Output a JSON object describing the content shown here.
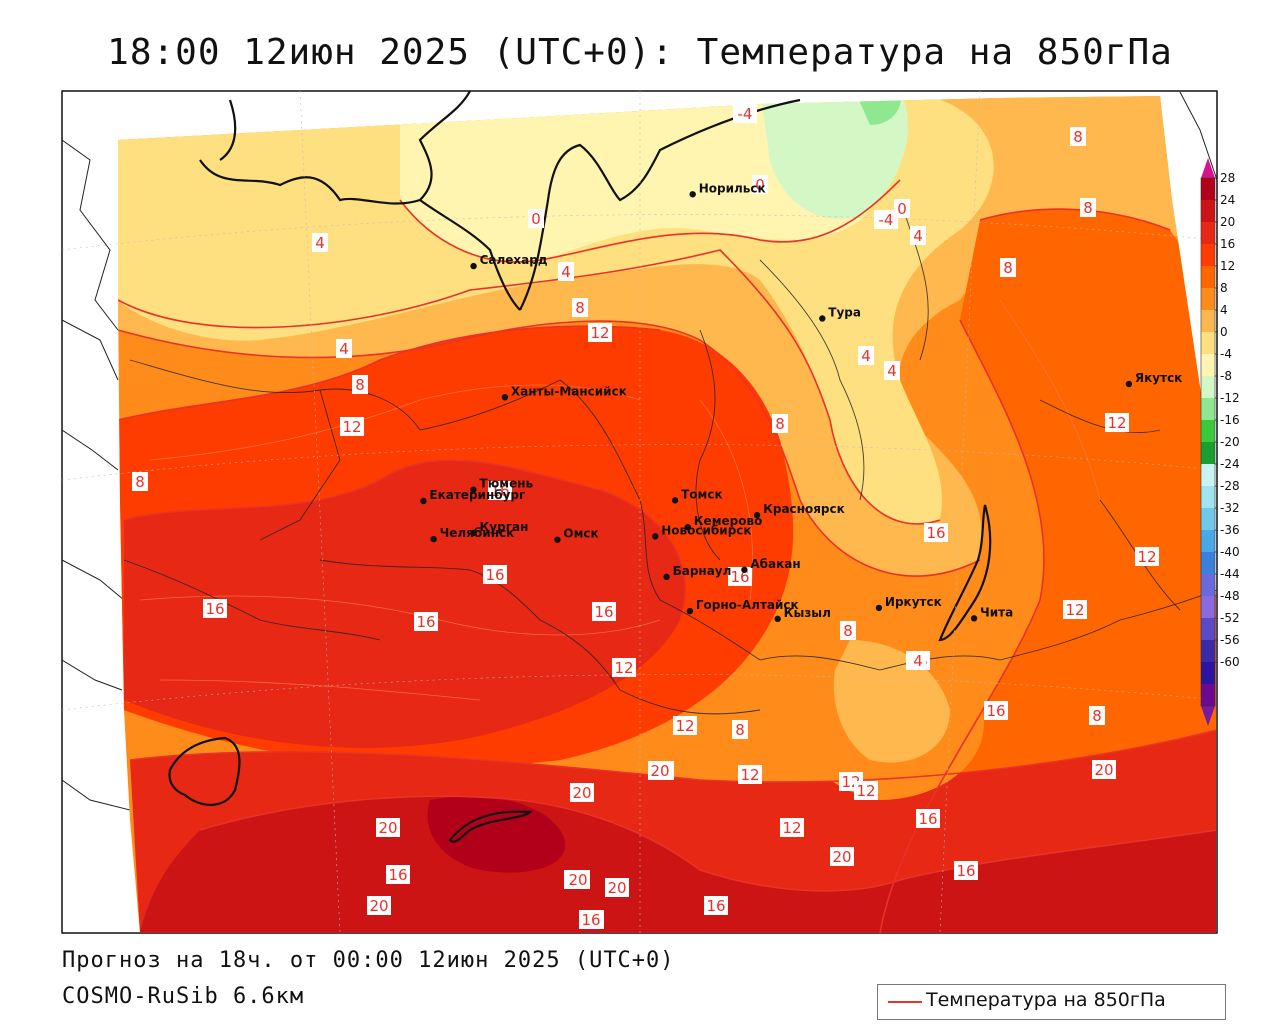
{
  "title": "18:00 12июн 2025 (UTC+0): Температура на 850гПа",
  "forecast_line": "Прогноз на 18ч. от 00:00 12июн 2025 (UTC+0)",
  "model_line": "COSMO-RuSib 6.6км",
  "legend_label": "Температура на 850гПа",
  "colorbar": {
    "ticks": [
      28,
      24,
      20,
      16,
      12,
      8,
      4,
      0,
      -4,
      -8,
      -12,
      -16,
      -20,
      -24,
      -28,
      -32,
      -36,
      -40,
      -44,
      -48,
      -52,
      -56,
      -60
    ],
    "colors": [
      "#b3001a",
      "#cc1414",
      "#e62814",
      "#ff3c00",
      "#ff6600",
      "#ff8c1a",
      "#ffb84d",
      "#ffe080",
      "#fff4b0",
      "#d4f7c6",
      "#8fe88f",
      "#3cc83c",
      "#1a9e2e",
      "#c8f4f4",
      "#a0e4f0",
      "#70c8ec",
      "#4aa8e8",
      "#3a80dc",
      "#6a6adc",
      "#8a6ae0",
      "#5a4ac8",
      "#3a2aa8",
      "#2a14a0",
      "#6a0a90"
    ],
    "top_arrow_color": "#d6138c",
    "bottom_arrow_color": "#7a1aa0"
  },
  "cities": [
    {
      "name": "Норильск",
      "lon_deg": 88.2,
      "lat_deg": 69.3
    },
    {
      "name": "Якутск",
      "lon_deg": 129.7,
      "lat_deg": 62.0
    },
    {
      "name": "Салехард",
      "lon_deg": 66.6,
      "lat_deg": 66.5
    },
    {
      "name": "Тура",
      "lon_deg": 100.2,
      "lat_deg": 64.3
    },
    {
      "name": "Ханты-Мансийск",
      "lon_deg": 69.0,
      "lat_deg": 61.0
    },
    {
      "name": "Екатеринбург",
      "lon_deg": 60.6,
      "lat_deg": 56.8
    },
    {
      "name": "Тюмень",
      "lon_deg": 65.5,
      "lat_deg": 57.2
    },
    {
      "name": "Челябинск",
      "lon_deg": 61.4,
      "lat_deg": 55.2
    },
    {
      "name": "Курган",
      "lon_deg": 65.3,
      "lat_deg": 55.4
    },
    {
      "name": "Омск",
      "lon_deg": 73.4,
      "lat_deg": 55.0
    },
    {
      "name": "Новосибирск",
      "lon_deg": 82.9,
      "lat_deg": 55.0
    },
    {
      "name": "Томск",
      "lon_deg": 85.0,
      "lat_deg": 56.5
    },
    {
      "name": "Кемерово",
      "lon_deg": 86.1,
      "lat_deg": 55.4
    },
    {
      "name": "Красноярск",
      "lon_deg": 92.9,
      "lat_deg": 56.0
    },
    {
      "name": "Барнаул",
      "lon_deg": 83.8,
      "lat_deg": 53.3
    },
    {
      "name": "Абакан",
      "lon_deg": 91.4,
      "lat_deg": 53.7
    },
    {
      "name": "Горно-Алтайск",
      "lon_deg": 85.9,
      "lat_deg": 51.9
    },
    {
      "name": "Кызыл",
      "lon_deg": 94.4,
      "lat_deg": 51.7
    },
    {
      "name": "Иркутск",
      "lon_deg": 104.3,
      "lat_deg": 52.3
    },
    {
      "name": "Чита",
      "lon_deg": 113.5,
      "lat_deg": 52.0
    }
  ],
  "contour_labels": [
    "-4",
    "8",
    "0",
    "-4",
    "0",
    "8",
    "0",
    "4",
    "4",
    "4",
    "8",
    "8",
    "12",
    "4",
    "4",
    "4",
    "8",
    "8",
    "12",
    "12",
    "8",
    "16",
    "16",
    "12",
    "16",
    "16",
    "16",
    "16",
    "12",
    "16",
    "8",
    "12",
    "16",
    "4",
    "16",
    "8",
    "12",
    "8",
    "12",
    "12",
    "16",
    "20",
    "20",
    "12",
    "12",
    "20",
    "20",
    "16",
    "16",
    "20",
    "20",
    "20",
    "16",
    "20",
    "16",
    "20",
    "16",
    "20"
  ]
}
